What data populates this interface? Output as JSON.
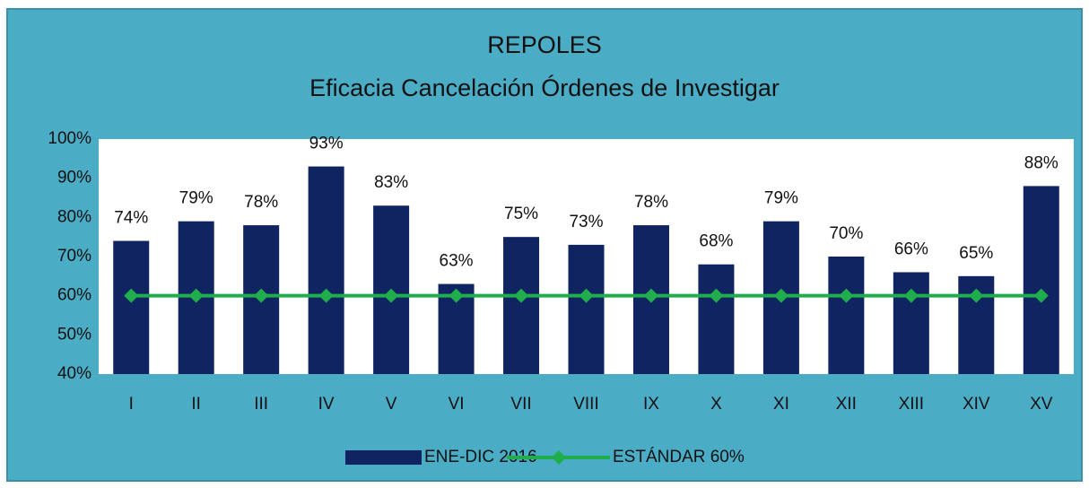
{
  "chart_data": {
    "type": "bar",
    "title": [
      "REPOLES",
      "Eficacia Cancelación Órdenes de Investigar"
    ],
    "categories": [
      "I",
      "II",
      "III",
      "IV",
      "V",
      "VI",
      "VII",
      "VIII",
      "IX",
      "X",
      "XI",
      "XII",
      "XIII",
      "XIV",
      "XV"
    ],
    "series": [
      {
        "name": "ENE-DIC 2016",
        "type": "bar",
        "color": "#102462",
        "values": [
          74,
          79,
          78,
          93,
          83,
          63,
          75,
          73,
          78,
          68,
          79,
          70,
          66,
          65,
          88
        ],
        "value_labels": [
          "74%",
          "79%",
          "78%",
          "93%",
          "83%",
          "63%",
          "75%",
          "73%",
          "78%",
          "68%",
          "79%",
          "70%",
          "66%",
          "65%",
          "88%"
        ]
      },
      {
        "name": "ESTÁNDAR 60%",
        "type": "line",
        "color": "#1fae4b",
        "values": [
          60,
          60,
          60,
          60,
          60,
          60,
          60,
          60,
          60,
          60,
          60,
          60,
          60,
          60,
          60
        ]
      }
    ],
    "ylim": [
      40,
      100
    ],
    "yticks": [
      {
        "value": 40,
        "label": "40%"
      },
      {
        "value": 50,
        "label": "50%"
      },
      {
        "value": 60,
        "label": "60%"
      },
      {
        "value": 70,
        "label": "70%"
      },
      {
        "value": 80,
        "label": "80%"
      },
      {
        "value": 90,
        "label": "90%"
      },
      {
        "value": 100,
        "label": "100%"
      }
    ],
    "grid": false,
    "legend": "bottom"
  }
}
